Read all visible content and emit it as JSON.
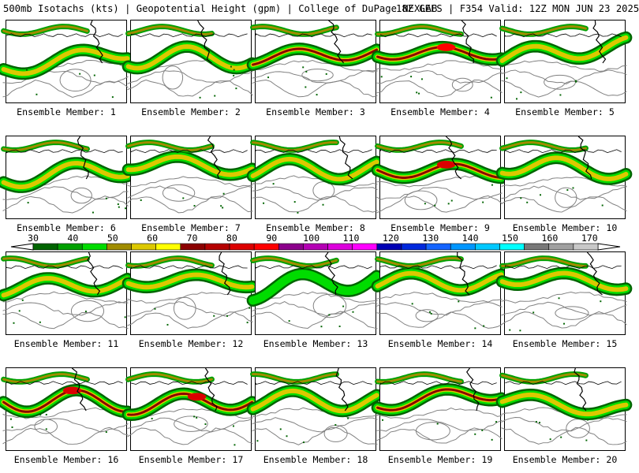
{
  "header": {
    "left": "500mb Isotachs (kts) | Geopotential Height (gpm) | College of DuPage NEXLAB",
    "right": "18Z GEFS | F354 Valid: 12Z MON JUN 23 2025"
  },
  "members": [
    {
      "label": "Ensemble Member: 1",
      "jet": {
        "amp": 10,
        "phase": 0.2,
        "y": 0.48,
        "peak": 55,
        "tilt": -0.15
      }
    },
    {
      "label": "Ensemble Member: 2",
      "jet": {
        "amp": 14,
        "phase": 1.2,
        "y": 0.45,
        "peak": 60,
        "tilt": 0.0
      }
    },
    {
      "label": "Ensemble Member: 3",
      "jet": {
        "amp": 9,
        "phase": 2.1,
        "y": 0.42,
        "peak": 62,
        "tilt": -0.05
      }
    },
    {
      "label": "Ensemble Member: 4",
      "jet": {
        "amp": 8,
        "phase": 0.8,
        "y": 0.4,
        "peak": 75,
        "tilt": 0.0
      }
    },
    {
      "label": "Ensemble Member: 5",
      "jet": {
        "amp": 11,
        "phase": 3.0,
        "y": 0.38,
        "peak": 58,
        "tilt": -0.1
      }
    },
    {
      "label": "Ensemble Member: 6",
      "jet": {
        "amp": 12,
        "phase": 0.5,
        "y": 0.45,
        "peak": 60,
        "tilt": -0.1
      }
    },
    {
      "label": "Ensemble Member: 7",
      "jet": {
        "amp": 10,
        "phase": 1.7,
        "y": 0.35,
        "peak": 55,
        "tilt": 0.05
      }
    },
    {
      "label": "Ensemble Member: 8",
      "jet": {
        "amp": 13,
        "phase": 2.6,
        "y": 0.4,
        "peak": 52,
        "tilt": 0.0
      }
    },
    {
      "label": "Ensemble Member: 9",
      "jet": {
        "amp": 9,
        "phase": 0.1,
        "y": 0.42,
        "peak": 72,
        "tilt": 0.0
      }
    },
    {
      "label": "Ensemble Member: 10",
      "jet": {
        "amp": 12,
        "phase": 1.4,
        "y": 0.38,
        "peak": 52,
        "tilt": 0.05
      }
    },
    {
      "label": "Ensemble Member: 11",
      "jet": {
        "amp": 10,
        "phase": 2.2,
        "y": 0.4,
        "peak": 60,
        "tilt": -0.05
      }
    },
    {
      "label": "Ensemble Member: 12",
      "jet": {
        "amp": 8,
        "phase": 0.6,
        "y": 0.35,
        "peak": 55,
        "tilt": 0.0
      }
    },
    {
      "label": "Ensemble Member: 13",
      "jet": {
        "amp": 14,
        "phase": 1.9,
        "y": 0.38,
        "peak": 50,
        "tilt": -0.1
      }
    },
    {
      "label": "Ensemble Member: 14",
      "jet": {
        "amp": 11,
        "phase": 2.8,
        "y": 0.36,
        "peak": 58,
        "tilt": 0.0
      }
    },
    {
      "label": "Ensemble Member: 15",
      "jet": {
        "amp": 9,
        "phase": 0.9,
        "y": 0.34,
        "peak": 52,
        "tilt": 0.05
      }
    },
    {
      "label": "Ensemble Member: 16",
      "jet": {
        "amp": 14,
        "phase": 0.3,
        "y": 0.4,
        "peak": 72,
        "tilt": 0.0
      }
    },
    {
      "label": "Ensemble Member: 17",
      "jet": {
        "amp": 12,
        "phase": 1.5,
        "y": 0.42,
        "peak": 70,
        "tilt": -0.05
      }
    },
    {
      "label": "Ensemble Member: 18",
      "jet": {
        "amp": 13,
        "phase": 2.4,
        "y": 0.4,
        "peak": 55,
        "tilt": 0.0
      }
    },
    {
      "label": "Ensemble Member: 19",
      "jet": {
        "amp": 10,
        "phase": 0.7,
        "y": 0.36,
        "peak": 65,
        "tilt": -0.1
      }
    },
    {
      "label": "Ensemble Member: 20",
      "jet": {
        "amp": 9,
        "phase": 2.9,
        "y": 0.45,
        "peak": 55,
        "tilt": 0.1
      }
    }
  ],
  "scale": {
    "units": "kts",
    "ticks": [
      30,
      40,
      50,
      60,
      70,
      80,
      90,
      100,
      110,
      120,
      130,
      140,
      150,
      160,
      170
    ],
    "colors": [
      "#006400",
      "#00a000",
      "#00dc00",
      "#a08c00",
      "#dcc800",
      "#ffff00",
      "#8b0000",
      "#b40000",
      "#dc0000",
      "#ff0000",
      "#8b008b",
      "#b400b4",
      "#dc00dc",
      "#ff00ff",
      "#0000b4",
      "#0028dc",
      "#1464ff",
      "#0096ff",
      "#00c8ff",
      "#00ffff",
      "#787878",
      "#a0a0a0",
      "#c8c8c8"
    ]
  },
  "map_colors": {
    "background": "#ffffff",
    "height_contour": "#808080",
    "border": "#000000"
  }
}
